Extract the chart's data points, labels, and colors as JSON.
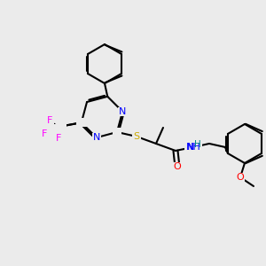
{
  "bg_color": "#ebebeb",
  "bond_color": "#000000",
  "bond_width": 1.5,
  "atom_colors": {
    "N": "#0000ff",
    "O": "#ff0000",
    "S": "#ccaa00",
    "F": "#ff00ff",
    "H": "#008888",
    "C": "#000000"
  },
  "font_size": 7.5,
  "figsize": [
    3.0,
    3.0
  ],
  "dpi": 100
}
